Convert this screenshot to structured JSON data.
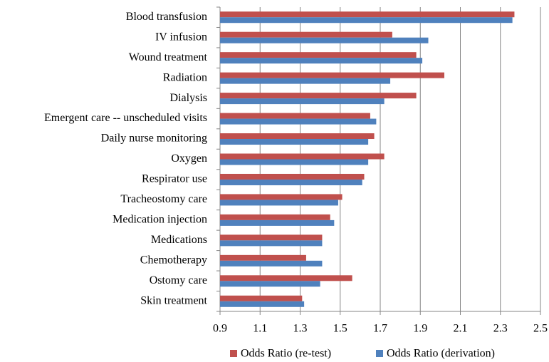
{
  "chart_data": {
    "type": "hbar",
    "categories": [
      "Blood transfusion",
      "IV infusion",
      "Wound treatment",
      "Radiation",
      "Dialysis",
      "Emergent care -- unscheduled visits",
      "Daily nurse monitoring",
      "Oxygen",
      "Respirator use",
      "Tracheostomy care",
      "Medication injection",
      "Medications",
      "Chemotherapy",
      "Ostomy care",
      "Skin treatment"
    ],
    "series": [
      {
        "name": "Odds Ratio (re-test)",
        "color": "#c0504d",
        "values": [
          2.37,
          1.76,
          1.88,
          2.02,
          1.88,
          1.65,
          1.67,
          1.72,
          1.62,
          1.51,
          1.45,
          1.41,
          1.33,
          1.56,
          1.31
        ]
      },
      {
        "name": "Odds Ratio (derivation)",
        "color": "#4f81bd",
        "values": [
          2.36,
          1.94,
          1.91,
          1.75,
          1.72,
          1.68,
          1.64,
          1.64,
          1.61,
          1.49,
          1.47,
          1.41,
          1.41,
          1.4,
          1.32
        ]
      }
    ],
    "xlim": [
      0.9,
      2.5
    ],
    "xticks": [
      0.9,
      1.1,
      1.3,
      1.5,
      1.7,
      1.9,
      2.1,
      2.3,
      2.5
    ],
    "grid": true,
    "legend": "bottom"
  }
}
